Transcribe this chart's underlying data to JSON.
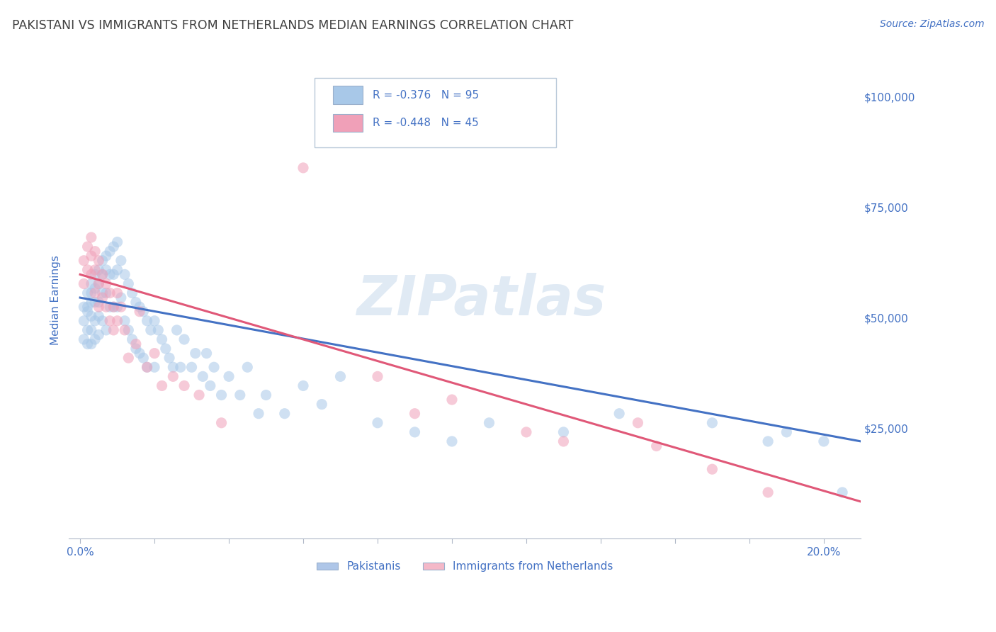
{
  "title": "PAKISTANI VS IMMIGRANTS FROM NETHERLANDS MEDIAN EARNINGS CORRELATION CHART",
  "source": "Source: ZipAtlas.com",
  "xlabel_tick_vals": [
    0.0,
    0.02,
    0.04,
    0.06,
    0.08,
    0.1,
    0.12,
    0.14,
    0.16,
    0.18,
    0.2
  ],
  "xlabel_label_vals": [
    0.0,
    0.2
  ],
  "xlabel_labels": [
    "0.0%",
    "20.0%"
  ],
  "ylabel": "Median Earnings",
  "ylabel_ticks": [
    0,
    25000,
    50000,
    75000,
    100000
  ],
  "ylabel_labels": [
    "",
    "$25,000",
    "$50,000",
    "$75,000",
    "$100,000"
  ],
  "xlim": [
    -0.003,
    0.21
  ],
  "ylim": [
    5000,
    108000
  ],
  "legend_entries": [
    {
      "label": "R = -0.376   N = 95",
      "color": "#aec6e8"
    },
    {
      "label": "R = -0.448   N = 45",
      "color": "#f4b8c8"
    }
  ],
  "legend_bottom": [
    "Pakistanis",
    "Immigrants from Netherlands"
  ],
  "legend_bottom_colors": [
    "#aec6e8",
    "#f4b8c8"
  ],
  "watermark": "ZIPatlas",
  "pakistanis_x": [
    0.001,
    0.001,
    0.001,
    0.002,
    0.002,
    0.002,
    0.002,
    0.002,
    0.003,
    0.003,
    0.003,
    0.003,
    0.003,
    0.003,
    0.004,
    0.004,
    0.004,
    0.004,
    0.004,
    0.005,
    0.005,
    0.005,
    0.005,
    0.005,
    0.006,
    0.006,
    0.006,
    0.006,
    0.007,
    0.007,
    0.007,
    0.007,
    0.008,
    0.008,
    0.008,
    0.009,
    0.009,
    0.009,
    0.01,
    0.01,
    0.01,
    0.011,
    0.011,
    0.012,
    0.012,
    0.013,
    0.013,
    0.014,
    0.014,
    0.015,
    0.015,
    0.016,
    0.016,
    0.017,
    0.017,
    0.018,
    0.018,
    0.019,
    0.02,
    0.02,
    0.021,
    0.022,
    0.023,
    0.024,
    0.025,
    0.026,
    0.027,
    0.028,
    0.03,
    0.031,
    0.033,
    0.034,
    0.035,
    0.036,
    0.038,
    0.04,
    0.043,
    0.045,
    0.048,
    0.05,
    0.055,
    0.06,
    0.065,
    0.07,
    0.08,
    0.09,
    0.1,
    0.11,
    0.13,
    0.145,
    0.17,
    0.185,
    0.19,
    0.2,
    0.205
  ],
  "pakistanis_y": [
    55000,
    52000,
    48000,
    58000,
    55000,
    54000,
    50000,
    47000,
    60000,
    58000,
    56000,
    53000,
    50000,
    47000,
    62000,
    59000,
    56000,
    52000,
    48000,
    63000,
    60000,
    56000,
    53000,
    49000,
    65000,
    62000,
    58000,
    52000,
    66000,
    63000,
    58000,
    50000,
    67000,
    62000,
    55000,
    68000,
    62000,
    55000,
    69000,
    63000,
    55000,
    65000,
    57000,
    62000,
    52000,
    60000,
    50000,
    58000,
    48000,
    56000,
    46000,
    55000,
    45000,
    54000,
    44000,
    52000,
    42000,
    50000,
    52000,
    42000,
    50000,
    48000,
    46000,
    44000,
    42000,
    50000,
    42000,
    48000,
    42000,
    45000,
    40000,
    45000,
    38000,
    42000,
    36000,
    40000,
    36000,
    42000,
    32000,
    36000,
    32000,
    38000,
    34000,
    40000,
    30000,
    28000,
    26000,
    30000,
    28000,
    32000,
    30000,
    26000,
    28000,
    26000,
    15000
  ],
  "netherlands_x": [
    0.001,
    0.001,
    0.002,
    0.002,
    0.003,
    0.003,
    0.003,
    0.004,
    0.004,
    0.004,
    0.005,
    0.005,
    0.005,
    0.006,
    0.006,
    0.007,
    0.007,
    0.008,
    0.008,
    0.009,
    0.009,
    0.01,
    0.01,
    0.011,
    0.012,
    0.013,
    0.015,
    0.016,
    0.018,
    0.02,
    0.022,
    0.025,
    0.028,
    0.032,
    0.038,
    0.06,
    0.08,
    0.09,
    0.1,
    0.12,
    0.13,
    0.15,
    0.155,
    0.17,
    0.185
  ],
  "netherlands_y": [
    65000,
    60000,
    68000,
    63000,
    70000,
    66000,
    62000,
    67000,
    63000,
    58000,
    65000,
    60000,
    55000,
    62000,
    57000,
    60000,
    55000,
    58000,
    52000,
    55000,
    50000,
    58000,
    52000,
    55000,
    50000,
    44000,
    47000,
    54000,
    42000,
    45000,
    38000,
    40000,
    38000,
    36000,
    30000,
    85000,
    40000,
    32000,
    35000,
    28000,
    26000,
    30000,
    25000,
    20000,
    15000
  ],
  "blue_line_x": [
    0.0,
    0.21
  ],
  "blue_line_y": [
    57000,
    26000
  ],
  "pink_line_x": [
    0.0,
    0.21
  ],
  "pink_line_y": [
    62000,
    13000
  ],
  "dot_size": 120,
  "dot_alpha": 0.55,
  "line_width": 2.2,
  "blue_color": "#a8c8e8",
  "pink_color": "#f0a0b8",
  "blue_line_color": "#4472c4",
  "pink_line_color": "#e05878",
  "background_color": "#ffffff",
  "grid_color": "#c8d4e8",
  "title_color": "#404040",
  "axis_label_color": "#4472c4",
  "source_color": "#4472c4"
}
